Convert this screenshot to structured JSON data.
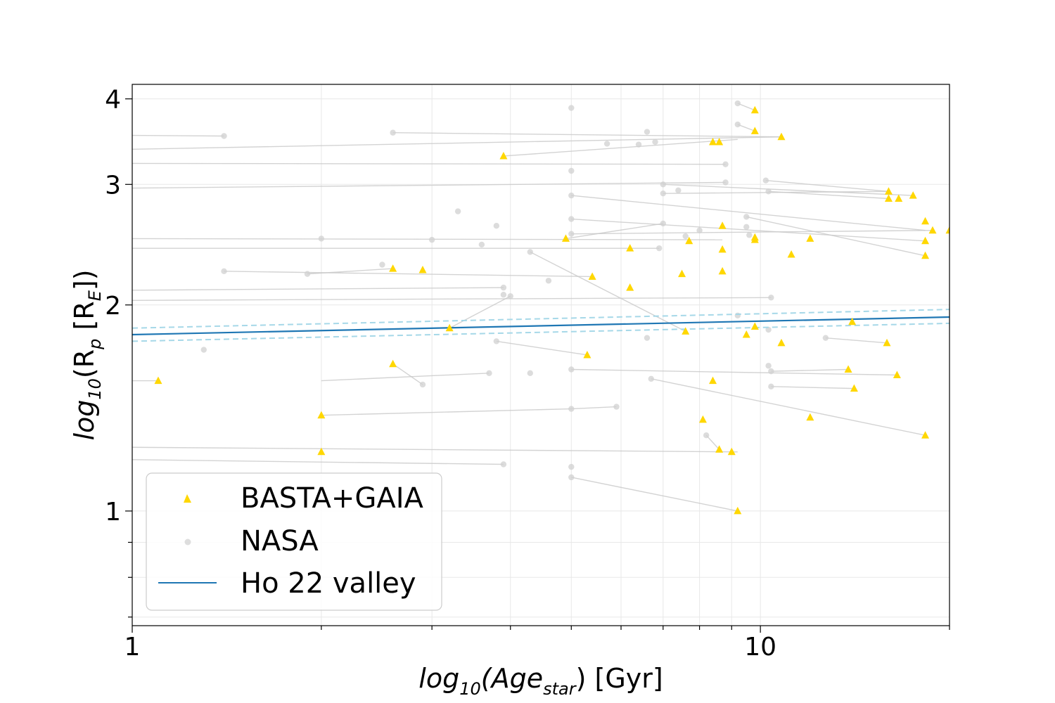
{
  "chart_data": {
    "type": "scatter",
    "xlabel": {
      "pre": "log",
      "sub1": "10",
      "mid": "(Age",
      "sub2": "star",
      "post": ") [Gyr]"
    },
    "ylabel": {
      "pre": "log",
      "sub1": "10",
      "mid": "(R",
      "sub2": "p",
      "mid2": " [R",
      "sub3": "E",
      "post": "])"
    },
    "x_scale": "log",
    "y_scale": "log",
    "xlim": [
      1,
      20
    ],
    "ylim": [
      0.68,
      4.2
    ],
    "x_ticks": [
      {
        "value": 1,
        "label": "1"
      },
      {
        "value": 10,
        "label": "10"
      }
    ],
    "y_ticks": [
      {
        "value": 1,
        "label": "1"
      },
      {
        "value": 2,
        "label": "2"
      },
      {
        "value": 3,
        "label": "3"
      },
      {
        "value": 4,
        "label": "4"
      }
    ],
    "grid": true,
    "legend_position": "lower-left",
    "colors": {
      "basta": "#FFD700",
      "nasa": "#d0d0d0",
      "valley": "#1f77b4",
      "valley_band": "#a6d8e8",
      "link": "#c8c8c8"
    },
    "valley": {
      "name": "Ho 22 valley",
      "x": [
        1,
        20
      ],
      "y": [
        1.81,
        1.92
      ],
      "upper": [
        1.85,
        1.97
      ],
      "lower": [
        1.77,
        1.88
      ]
    },
    "series": [
      {
        "name": "BASTA+GAIA",
        "marker": "triangle",
        "points": [
          [
            1.1,
            1.55
          ],
          [
            2.0,
            1.38
          ],
          [
            2.0,
            1.22
          ],
          [
            2.6,
            2.26
          ],
          [
            2.6,
            1.64
          ],
          [
            2.9,
            2.25
          ],
          [
            3.2,
            1.85
          ],
          [
            3.9,
            3.3
          ],
          [
            4.9,
            2.5
          ],
          [
            5.3,
            1.69
          ],
          [
            5.4,
            2.2
          ],
          [
            6.2,
            2.42
          ],
          [
            6.2,
            2.12
          ],
          [
            7.5,
            2.22
          ],
          [
            7.6,
            1.83
          ],
          [
            7.7,
            2.48
          ],
          [
            8.1,
            1.36
          ],
          [
            8.4,
            3.46
          ],
          [
            8.4,
            1.55
          ],
          [
            8.6,
            3.46
          ],
          [
            8.7,
            2.61
          ],
          [
            8.7,
            2.41
          ],
          [
            8.7,
            2.24
          ],
          [
            8.6,
            1.23
          ],
          [
            9.0,
            1.22
          ],
          [
            9.2,
            1.0
          ],
          [
            9.5,
            1.81
          ],
          [
            9.8,
            3.85
          ],
          [
            9.8,
            3.59
          ],
          [
            9.8,
            2.49
          ],
          [
            9.8,
            2.51
          ],
          [
            9.8,
            1.86
          ],
          [
            10.8,
            3.52
          ],
          [
            10.8,
            1.76
          ],
          [
            11.2,
            2.37
          ],
          [
            12.0,
            2.5
          ],
          [
            12.0,
            1.37
          ],
          [
            13.8,
            1.61
          ],
          [
            14.0,
            1.89
          ],
          [
            14.1,
            1.51
          ],
          [
            16.0,
            2.93
          ],
          [
            16.0,
            2.86
          ],
          [
            16.6,
            2.86
          ],
          [
            17.5,
            2.89
          ],
          [
            18.3,
            2.65
          ],
          [
            18.3,
            2.48
          ],
          [
            18.3,
            2.36
          ],
          [
            18.3,
            1.29
          ],
          [
            18.8,
            2.57
          ],
          [
            15.9,
            1.76
          ],
          [
            16.5,
            1.58
          ],
          [
            20.0,
            2.57
          ]
        ]
      },
      {
        "name": "NASA",
        "marker": "circle",
        "points": [
          [
            1.4,
            3.53
          ],
          [
            1.3,
            1.72
          ],
          [
            1.4,
            2.24
          ],
          [
            1.9,
            2.22
          ],
          [
            2.0,
            2.5
          ],
          [
            2.5,
            2.29
          ],
          [
            2.6,
            3.57
          ],
          [
            2.9,
            1.53
          ],
          [
            3.0,
            2.49
          ],
          [
            3.3,
            2.74
          ],
          [
            3.6,
            2.45
          ],
          [
            3.7,
            1.59
          ],
          [
            3.8,
            2.61
          ],
          [
            3.8,
            1.77
          ],
          [
            3.9,
            2.12
          ],
          [
            3.9,
            2.07
          ],
          [
            4.0,
            2.06
          ],
          [
            3.9,
            1.17
          ],
          [
            4.3,
            1.59
          ],
          [
            4.3,
            2.39
          ],
          [
            4.6,
            2.17
          ],
          [
            5.0,
            3.88
          ],
          [
            5.0,
            3.14
          ],
          [
            5.0,
            2.89
          ],
          [
            5.0,
            2.67
          ],
          [
            5.0,
            2.54
          ],
          [
            5.0,
            1.61
          ],
          [
            5.0,
            1.41
          ],
          [
            5.0,
            1.16
          ],
          [
            5.0,
            1.12
          ],
          [
            5.7,
            3.44
          ],
          [
            5.9,
            1.42
          ],
          [
            6.4,
            3.43
          ],
          [
            6.6,
            3.58
          ],
          [
            6.6,
            1.79
          ],
          [
            6.7,
            1.56
          ],
          [
            6.8,
            3.46
          ],
          [
            6.9,
            2.42
          ],
          [
            7.0,
            3.0
          ],
          [
            7.0,
            2.91
          ],
          [
            7.0,
            2.63
          ],
          [
            7.4,
            2.94
          ],
          [
            7.6,
            2.52
          ],
          [
            8.0,
            2.57
          ],
          [
            8.2,
            1.29
          ],
          [
            8.8,
            3.21
          ],
          [
            8.8,
            3.02
          ],
          [
            9.2,
            3.94
          ],
          [
            9.2,
            3.67
          ],
          [
            9.2,
            1.93
          ],
          [
            9.5,
            2.69
          ],
          [
            9.5,
            2.6
          ],
          [
            9.6,
            2.53
          ],
          [
            10.2,
            3.04
          ],
          [
            10.3,
            2.93
          ],
          [
            10.3,
            1.84
          ],
          [
            10.3,
            1.63
          ],
          [
            10.4,
            2.05
          ],
          [
            10.4,
            1.6
          ],
          [
            10.4,
            1.52
          ],
          [
            12.7,
            1.79
          ]
        ]
      }
    ],
    "links": [
      [
        [
          0.9,
          3.54
        ],
        [
          1.4,
          3.53
        ]
      ],
      [
        [
          0.9,
          3.37
        ],
        [
          10.8,
          3.52
        ]
      ],
      [
        [
          0.9,
          3.22
        ],
        [
          8.8,
          3.21
        ]
      ],
      [
        [
          0.9,
          2.96
        ],
        [
          8.8,
          3.02
        ]
      ],
      [
        [
          0.9,
          2.5
        ],
        [
          8.7,
          2.49
        ]
      ],
      [
        [
          0.9,
          2.42
        ],
        [
          6.9,
          2.42
        ]
      ],
      [
        [
          0.9,
          2.1
        ],
        [
          3.9,
          2.12
        ]
      ],
      [
        [
          0.9,
          2.03
        ],
        [
          10.4,
          2.05
        ]
      ],
      [
        [
          0.9,
          1.55
        ],
        [
          1.1,
          1.55
        ]
      ],
      [
        [
          0.9,
          1.24
        ],
        [
          9.2,
          1.22
        ]
      ],
      [
        [
          0.9,
          1.19
        ],
        [
          3.9,
          1.17
        ]
      ],
      [
        [
          1.4,
          2.24
        ],
        [
          5.4,
          2.2
        ]
      ],
      [
        [
          1.9,
          2.22
        ],
        [
          2.6,
          2.26
        ]
      ],
      [
        [
          2.6,
          3.57
        ],
        [
          10.8,
          3.52
        ]
      ],
      [
        [
          2.0,
          1.38
        ],
        [
          5.0,
          1.41
        ]
      ],
      [
        [
          2.0,
          1.55
        ],
        [
          3.7,
          1.59
        ]
      ],
      [
        [
          2.6,
          1.64
        ],
        [
          2.9,
          1.53
        ]
      ],
      [
        [
          3.9,
          3.3
        ],
        [
          9.2,
          3.49
        ]
      ],
      [
        [
          3.2,
          1.85
        ],
        [
          4.0,
          2.06
        ]
      ],
      [
        [
          4.3,
          2.39
        ],
        [
          7.6,
          1.83
        ]
      ],
      [
        [
          3.8,
          1.77
        ],
        [
          5.3,
          1.69
        ]
      ],
      [
        [
          4.9,
          2.5
        ],
        [
          7.0,
          2.63
        ]
      ],
      [
        [
          5.0,
          2.89
        ],
        [
          18.3,
          2.57
        ]
      ],
      [
        [
          5.0,
          2.67
        ],
        [
          18.3,
          2.48
        ]
      ],
      [
        [
          5.0,
          2.54
        ],
        [
          18.8,
          2.57
        ]
      ],
      [
        [
          5.0,
          1.61
        ],
        [
          16.5,
          1.58
        ]
      ],
      [
        [
          5.0,
          1.41
        ],
        [
          5.9,
          1.42
        ]
      ],
      [
        [
          5.0,
          1.12
        ],
        [
          9.2,
          1.0
        ]
      ],
      [
        [
          7.0,
          3.0
        ],
        [
          17.5,
          2.89
        ]
      ],
      [
        [
          7.0,
          2.91
        ],
        [
          16.0,
          2.93
        ]
      ],
      [
        [
          9.2,
          3.94
        ],
        [
          9.8,
          3.85
        ]
      ],
      [
        [
          9.2,
          3.67
        ],
        [
          9.8,
          3.59
        ]
      ],
      [
        [
          10.2,
          3.04
        ],
        [
          16.0,
          2.93
        ]
      ],
      [
        [
          10.3,
          2.93
        ],
        [
          16.0,
          2.86
        ]
      ],
      [
        [
          10.4,
          1.6
        ],
        [
          13.8,
          1.61
        ]
      ],
      [
        [
          10.4,
          1.52
        ],
        [
          14.1,
          1.51
        ]
      ],
      [
        [
          6.7,
          1.56
        ],
        [
          18.3,
          1.29
        ]
      ],
      [
        [
          12.7,
          1.79
        ],
        [
          15.9,
          1.76
        ]
      ],
      [
        [
          9.5,
          2.69
        ],
        [
          18.3,
          2.36
        ]
      ],
      [
        [
          8.2,
          1.29
        ],
        [
          8.6,
          1.23
        ]
      ]
    ],
    "legend": [
      {
        "label": "BASTA+GAIA",
        "marker": "triangle"
      },
      {
        "label": "NASA",
        "marker": "circle"
      },
      {
        "label": "Ho 22 valley",
        "marker": "line"
      }
    ]
  }
}
